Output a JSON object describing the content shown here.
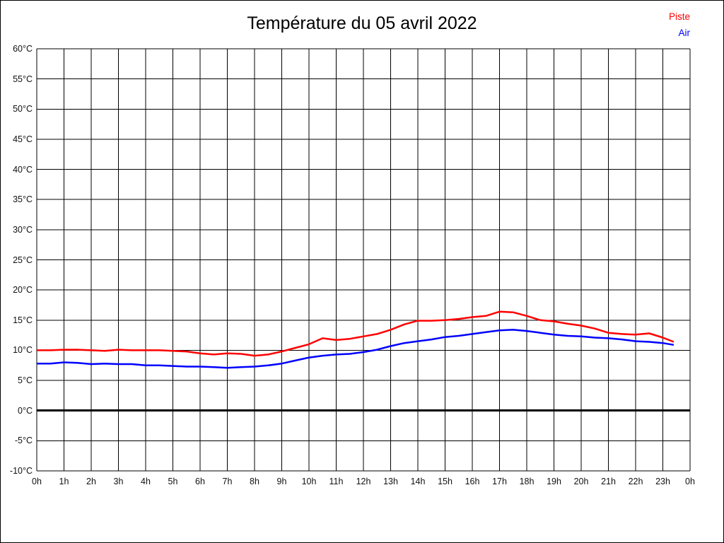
{
  "title": "Température du 05 avril 2022",
  "legend": {
    "position": "top-right",
    "items": [
      {
        "label": "Piste",
        "color": "#ff0000"
      },
      {
        "label": "Air",
        "color": "#0000ff"
      }
    ]
  },
  "chart_data": {
    "type": "line",
    "title": "Température du 05 avril 2022",
    "xlabel": "",
    "ylabel": "",
    "xlim": [
      0,
      24
    ],
    "ylim": [
      -10,
      60
    ],
    "grid": true,
    "grid_color": "#000000",
    "zero_line": true,
    "zero_line_color": "#000000",
    "legend_position": "top-right",
    "x_tick_labels": [
      "0h",
      "1h",
      "2h",
      "3h",
      "4h",
      "5h",
      "6h",
      "7h",
      "8h",
      "9h",
      "10h",
      "11h",
      "12h",
      "13h",
      "14h",
      "15h",
      "16h",
      "17h",
      "18h",
      "19h",
      "20h",
      "21h",
      "22h",
      "23h",
      "0h"
    ],
    "x_tick_values": [
      0,
      1,
      2,
      3,
      4,
      5,
      6,
      7,
      8,
      9,
      10,
      11,
      12,
      13,
      14,
      15,
      16,
      17,
      18,
      19,
      20,
      21,
      22,
      23,
      24
    ],
    "y_tick_labels": [
      "60°C",
      "55°C",
      "50°C",
      "45°C",
      "40°C",
      "35°C",
      "30°C",
      "25°C",
      "20°C",
      "15°C",
      "10°C",
      "5°C",
      "0°C",
      "-5°C",
      "-10°C"
    ],
    "y_tick_values": [
      60,
      55,
      50,
      45,
      40,
      35,
      30,
      25,
      20,
      15,
      10,
      5,
      0,
      -5,
      -10
    ],
    "x": [
      0,
      0.5,
      1,
      1.5,
      2,
      2.5,
      3,
      3.5,
      4,
      4.5,
      5,
      5.5,
      6,
      6.5,
      7,
      7.5,
      8,
      8.5,
      9,
      9.5,
      10,
      10.5,
      11,
      11.5,
      12,
      12.5,
      13,
      13.5,
      14,
      14.5,
      15,
      15.5,
      16,
      16.5,
      17,
      17.5,
      18,
      18.5,
      19,
      19.5,
      20,
      20.5,
      21,
      21.5,
      22,
      22.5,
      23,
      23.4
    ],
    "x_unit": "h",
    "y_unit": "°C",
    "series": [
      {
        "name": "Piste",
        "color": "#ff0000",
        "values": [
          10.0,
          10.0,
          10.1,
          10.1,
          10.0,
          9.9,
          10.1,
          10.0,
          10.0,
          10.0,
          9.9,
          9.8,
          9.5,
          9.3,
          9.5,
          9.4,
          9.1,
          9.3,
          9.8,
          10.4,
          11.0,
          12.0,
          11.7,
          11.9,
          12.3,
          12.7,
          13.4,
          14.3,
          14.9,
          14.9,
          15.0,
          15.2,
          15.5,
          15.7,
          16.4,
          16.3,
          15.7,
          15.0,
          14.8,
          14.4,
          14.1,
          13.6,
          12.9,
          12.7,
          12.6,
          12.8,
          12.1,
          11.4
        ]
      },
      {
        "name": "Air",
        "color": "#0000ff",
        "values": [
          7.8,
          7.8,
          8.0,
          7.9,
          7.7,
          7.8,
          7.7,
          7.7,
          7.5,
          7.5,
          7.4,
          7.3,
          7.3,
          7.2,
          7.1,
          7.2,
          7.3,
          7.5,
          7.8,
          8.3,
          8.8,
          9.1,
          9.3,
          9.4,
          9.7,
          10.1,
          10.7,
          11.2,
          11.5,
          11.8,
          12.2,
          12.4,
          12.7,
          13.0,
          13.3,
          13.4,
          13.2,
          12.9,
          12.6,
          12.4,
          12.3,
          12.1,
          12.0,
          11.8,
          11.5,
          11.4,
          11.2,
          10.9
        ]
      }
    ]
  }
}
